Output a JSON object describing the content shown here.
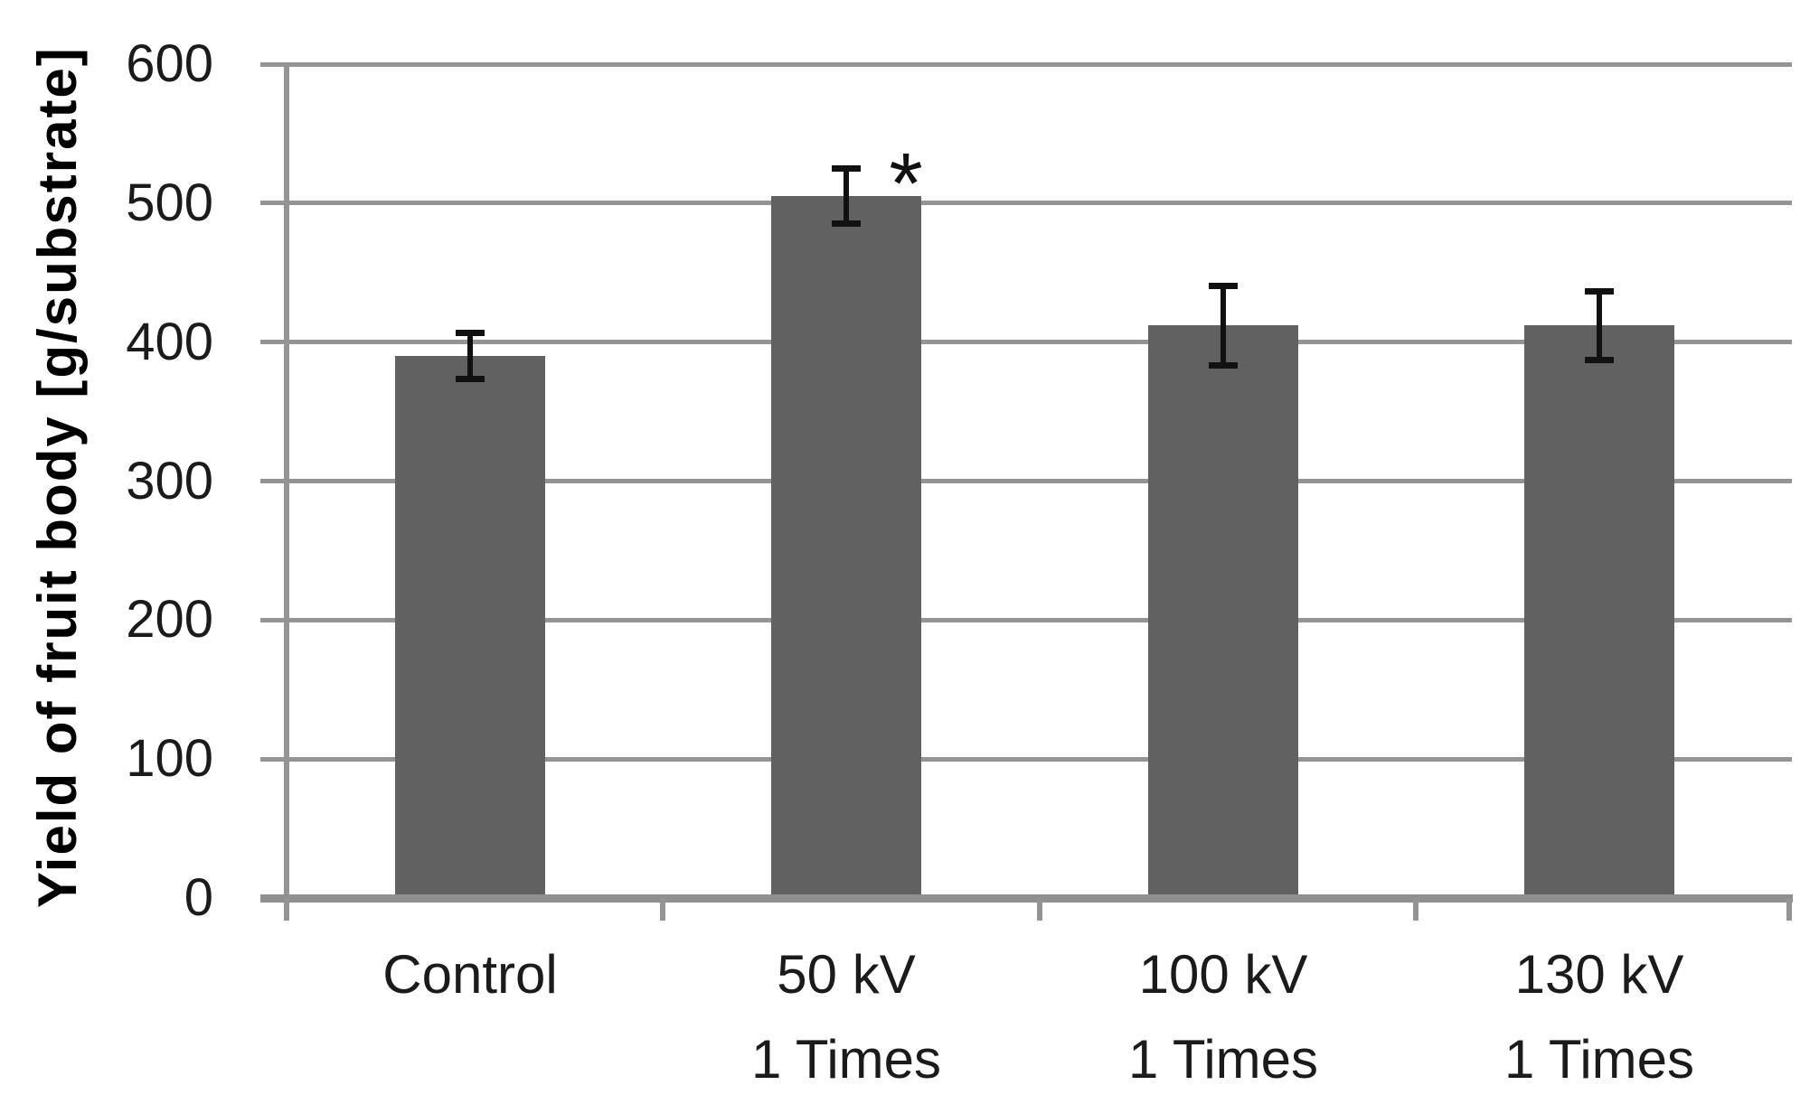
{
  "chart_data": {
    "type": "bar",
    "title": "",
    "ylabel": "Yield of fruit body [g/substrate]",
    "xlabel": "",
    "categories": [
      [
        "Control",
        ""
      ],
      [
        "50 kV",
        "1 Times"
      ],
      [
        "100 kV",
        "1 Times"
      ],
      [
        "130 kV",
        "1 Times"
      ]
    ],
    "values": [
      390,
      505,
      412,
      412
    ],
    "errors": [
      17,
      20,
      29,
      25
    ],
    "ylim": [
      0,
      600
    ],
    "yticks": [
      0,
      100,
      200,
      300,
      400,
      500,
      600
    ],
    "grid": "horizontal",
    "legend_position": "none",
    "annotations": [
      {
        "text": "*",
        "category_index": 1
      }
    ],
    "colors": {
      "bar": "#616161",
      "gridline": "#949494",
      "axis": "#8f8f8f",
      "error_bar": "#111111",
      "text": "#1b1b1b"
    }
  }
}
